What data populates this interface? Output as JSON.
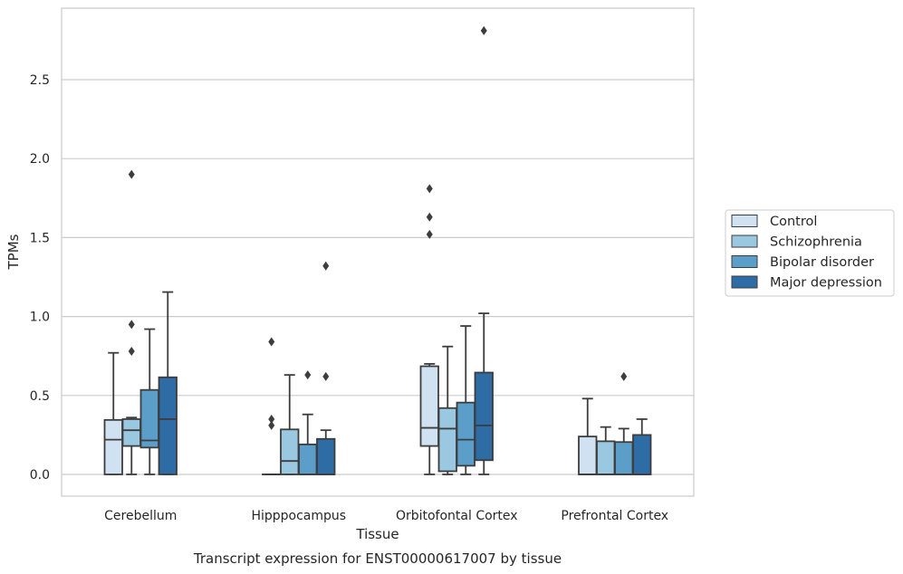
{
  "chart_data": {
    "type": "box",
    "title": "",
    "xlabel": "Tissue",
    "ylabel": "TPMs",
    "caption": "Transcript expression for ENST00000617007 by tissue",
    "ylim": [
      -0.14,
      2.96
    ],
    "yticks": [
      0.0,
      0.5,
      1.0,
      1.5,
      2.0,
      2.5
    ],
    "ytick_labels": [
      "0.0",
      "0.5",
      "1.0",
      "1.5",
      "2.0",
      "2.5"
    ],
    "grid": "horizontal",
    "legend_position": "right",
    "categories": [
      "Cerebellum",
      "Hipppocampus",
      "Orbitofontal Cortex",
      "Prefrontal Cortex"
    ],
    "series": [
      {
        "name": "Control",
        "color": "#d0e1f2",
        "boxes": [
          {
            "whisker_low": 0.0,
            "q1": 0.0,
            "median": 0.22,
            "q3": 0.345,
            "whisker_high": 0.77,
            "outliers": []
          },
          {
            "whisker_low": 0.0,
            "q1": 0.0,
            "median": 0.0,
            "q3": 0.0,
            "whisker_high": 0.0,
            "outliers": [
              0.31,
              0.35,
              0.84
            ]
          },
          {
            "whisker_low": 0.0,
            "q1": 0.18,
            "median": 0.295,
            "q3": 0.685,
            "whisker_high": 0.7,
            "outliers": [
              1.52,
              1.63,
              1.81
            ]
          },
          {
            "whisker_low": 0.0,
            "q1": 0.0,
            "median": 0.0,
            "q3": 0.24,
            "whisker_high": 0.48,
            "outliers": []
          }
        ]
      },
      {
        "name": "Schizophrenia",
        "color": "#9ac8e0",
        "boxes": [
          {
            "whisker_low": 0.0,
            "q1": 0.18,
            "median": 0.28,
            "q3": 0.35,
            "whisker_high": 0.36,
            "outliers": [
              0.78,
              0.95,
              1.9
            ]
          },
          {
            "whisker_low": 0.0,
            "q1": 0.0,
            "median": 0.085,
            "q3": 0.285,
            "whisker_high": 0.63,
            "outliers": []
          },
          {
            "whisker_low": 0.0,
            "q1": 0.02,
            "median": 0.29,
            "q3": 0.42,
            "whisker_high": 0.81,
            "outliers": []
          },
          {
            "whisker_low": 0.0,
            "q1": 0.0,
            "median": 0.0,
            "q3": 0.21,
            "whisker_high": 0.3,
            "outliers": []
          }
        ]
      },
      {
        "name": "Bipolar disorder",
        "color": "#5a9ec9",
        "boxes": [
          {
            "whisker_low": 0.0,
            "q1": 0.17,
            "median": 0.215,
            "q3": 0.535,
            "whisker_high": 0.92,
            "outliers": []
          },
          {
            "whisker_low": 0.0,
            "q1": 0.0,
            "median": 0.0,
            "q3": 0.19,
            "whisker_high": 0.38,
            "outliers": [
              0.63
            ]
          },
          {
            "whisker_low": 0.0,
            "q1": 0.055,
            "median": 0.22,
            "q3": 0.455,
            "whisker_high": 0.94,
            "outliers": []
          },
          {
            "whisker_low": 0.0,
            "q1": 0.0,
            "median": 0.0,
            "q3": 0.205,
            "whisker_high": 0.29,
            "outliers": [
              0.62
            ]
          }
        ]
      },
      {
        "name": "Major depression",
        "color": "#2d6ca5",
        "boxes": [
          {
            "whisker_low": 0.0,
            "q1": 0.0,
            "median": 0.35,
            "q3": 0.615,
            "whisker_high": 1.155,
            "outliers": []
          },
          {
            "whisker_low": 0.0,
            "q1": 0.0,
            "median": 0.0,
            "q3": 0.225,
            "whisker_high": 0.28,
            "outliers": [
              0.62,
              1.32
            ]
          },
          {
            "whisker_low": 0.0,
            "q1": 0.09,
            "median": 0.31,
            "q3": 0.645,
            "whisker_high": 1.02,
            "outliers": [
              2.81
            ]
          },
          {
            "whisker_low": 0.0,
            "q1": 0.0,
            "median": 0.0,
            "q3": 0.25,
            "whisker_high": 0.35,
            "outliers": []
          }
        ]
      }
    ]
  }
}
